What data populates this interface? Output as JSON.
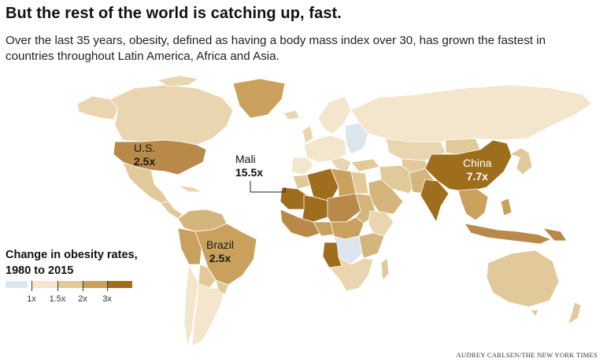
{
  "headline": "But the rest of the world is catching up, fast.",
  "dek": "Over the last 35 years, obesity, defined as having a body mass index over 30, has grown the fastest in countries throughout Latin America, Africa and Asia.",
  "labels": {
    "us": {
      "name": "U.S.",
      "value": "2.5x"
    },
    "mali": {
      "name": "Mali",
      "value": "15.5x"
    },
    "brazil": {
      "name": "Brazil",
      "value": "2.5x"
    },
    "china": {
      "name": "China",
      "value": "7.7x"
    }
  },
  "legend": {
    "title_line1": "Change in obesity rates,",
    "title_line2": "1980 to 2015",
    "ticks": [
      "1x",
      "1.5x",
      "2x",
      "3x"
    ],
    "colors": [
      "#dde6ef",
      "#f3e6cd",
      "#e1c99a",
      "#c9a15d",
      "#9e6e1c"
    ]
  },
  "credit": "AUDREY CARLSEN/THE NEW YORK TIMES"
}
